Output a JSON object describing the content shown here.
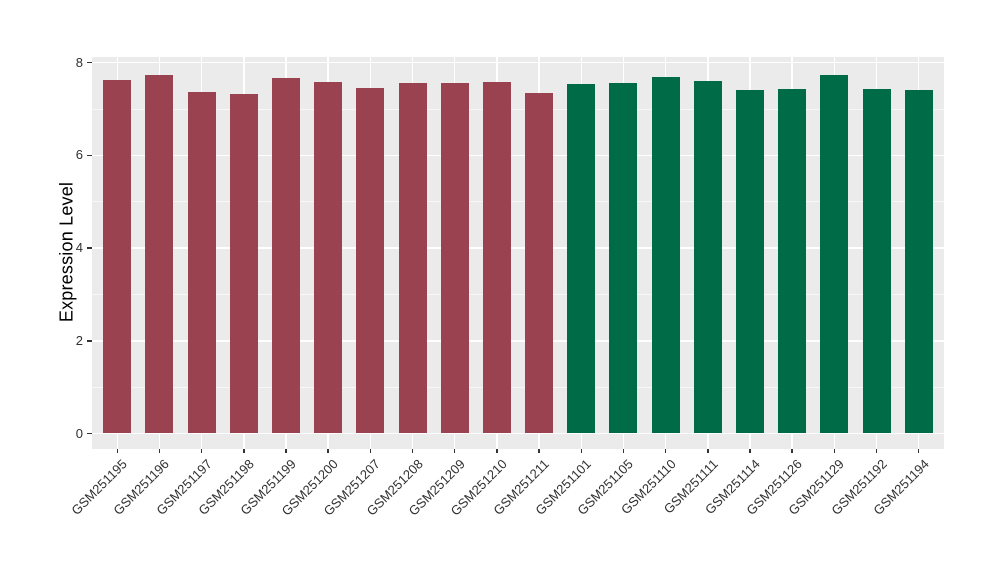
{
  "figure": {
    "background": "#FFFFFF",
    "panel_background": "#EBEBEB",
    "gridline_color": "#FFFFFF",
    "axis_text_color": "#303030"
  },
  "chart_data": {
    "type": "bar",
    "title": "",
    "xlabel": "",
    "ylabel": "Expression Level",
    "categories": [
      "GSM251195",
      "GSM251196",
      "GSM251197",
      "GSM251198",
      "GSM251199",
      "GSM251200",
      "GSM251207",
      "GSM251208",
      "GSM251209",
      "GSM251210",
      "GSM251211",
      "GSM251101",
      "GSM251105",
      "GSM251110",
      "GSM251111",
      "GSM251114",
      "GSM251126",
      "GSM251129",
      "GSM251192",
      "GSM251194"
    ],
    "values": [
      7.63,
      7.74,
      7.37,
      7.32,
      7.66,
      7.59,
      7.45,
      7.56,
      7.56,
      7.59,
      7.34,
      7.54,
      7.57,
      7.69,
      7.61,
      7.41,
      7.44,
      7.74,
      7.43,
      7.42
    ],
    "bar_colors": [
      "#9B4251",
      "#9B4251",
      "#9B4251",
      "#9B4251",
      "#9B4251",
      "#9B4251",
      "#9B4251",
      "#9B4251",
      "#9B4251",
      "#9B4251",
      "#9B4251",
      "#006B47",
      "#006B47",
      "#006B47",
      "#006B47",
      "#006B47",
      "#006B47",
      "#006B47",
      "#006B47",
      "#006B47"
    ],
    "yticks": [
      0,
      2,
      4,
      6,
      8
    ],
    "minor_yticks": [
      1,
      3,
      5,
      7
    ],
    "ylim": [
      0,
      8.15
    ],
    "grid": true,
    "legend_position": "none"
  }
}
